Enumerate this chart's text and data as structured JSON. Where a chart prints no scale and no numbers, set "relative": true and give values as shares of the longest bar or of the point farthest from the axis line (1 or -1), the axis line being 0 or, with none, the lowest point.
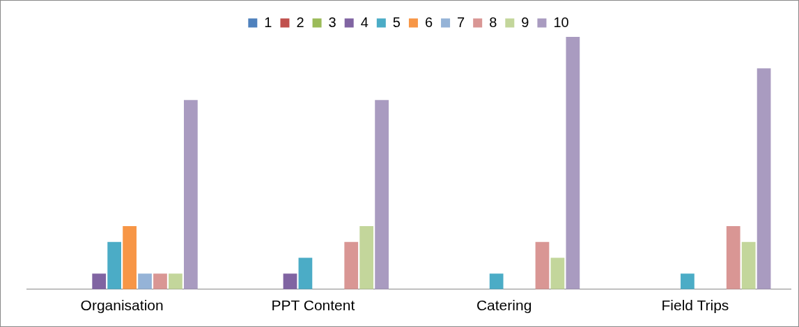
{
  "chart_data": {
    "type": "bar",
    "relative": true,
    "legend": "top",
    "grid": false,
    "categories": [
      "Organisation",
      "PPT Content",
      "Catering",
      "Field Trips"
    ],
    "series": [
      {
        "name": "1",
        "color": "#4f81bd",
        "values": [
          0,
          0,
          0,
          0
        ]
      },
      {
        "name": "2",
        "color": "#c0504d",
        "values": [
          0,
          0,
          0,
          0
        ]
      },
      {
        "name": "3",
        "color": "#9bbb59",
        "values": [
          0,
          0,
          0,
          0
        ]
      },
      {
        "name": "4",
        "color": "#8064a2",
        "values": [
          0.0625,
          0.0625,
          0,
          0
        ]
      },
      {
        "name": "5",
        "color": "#4bacc6",
        "values": [
          0.1875,
          0.125,
          0.0625,
          0.0625
        ]
      },
      {
        "name": "6",
        "color": "#f79646",
        "values": [
          0.25,
          0,
          0,
          0
        ]
      },
      {
        "name": "7",
        "color": "#95b3d7",
        "values": [
          0.0625,
          0,
          0,
          0
        ]
      },
      {
        "name": "8",
        "color": "#d99694",
        "values": [
          0.0625,
          0.1875,
          0.1875,
          0.25
        ]
      },
      {
        "name": "9",
        "color": "#c3d69b",
        "values": [
          0.0625,
          0.25,
          0.125,
          0.1875
        ]
      },
      {
        "name": "10",
        "color": "#a99bc0",
        "values": [
          0.75,
          0.75,
          1,
          0.875
        ]
      }
    ]
  }
}
